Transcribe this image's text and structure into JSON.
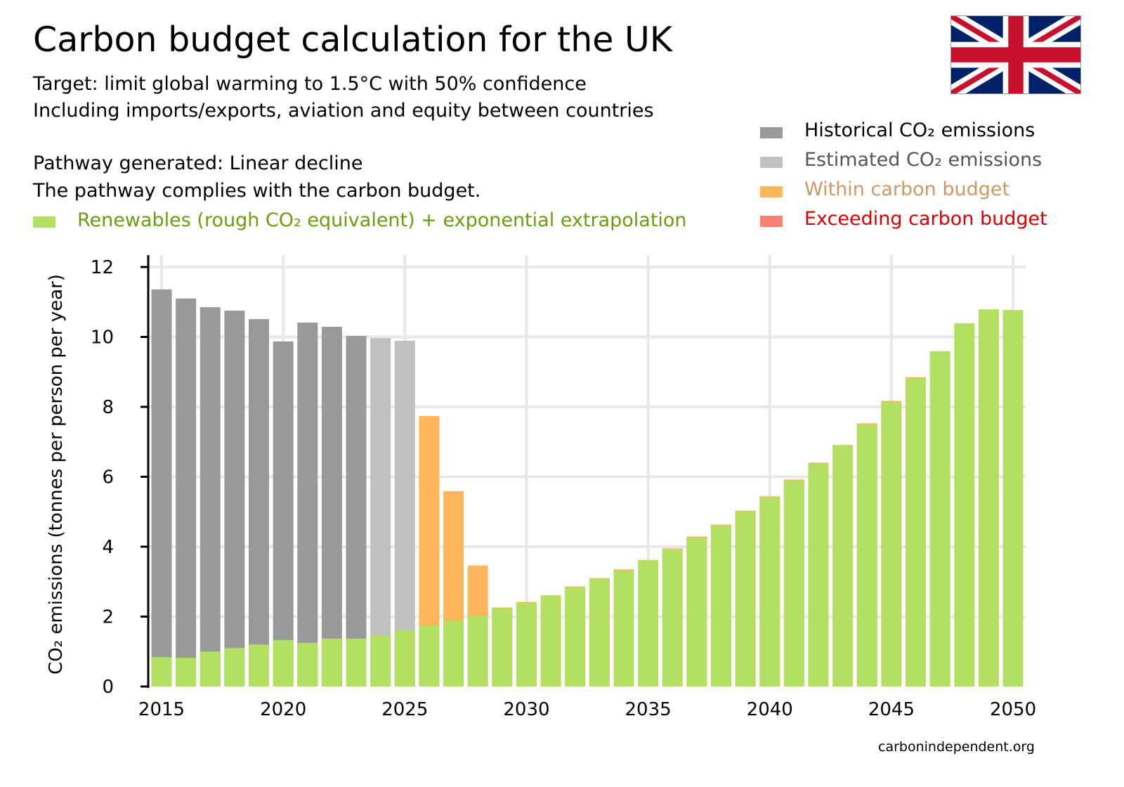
{
  "title": "Carbon budget calculation for the UK",
  "subtitle_lines": [
    "Target: limit global warming to 1.5°C with 50% confidence",
    "Including imports/exports, aviation and equity between countries",
    "Pathway generated: Linear decline",
    "The pathway complies with the carbon budget."
  ],
  "legend": {
    "renewables": "Renewables (rough CO₂ equivalent) + exponential extrapolation",
    "historical": "Historical CO₂ emissions",
    "estimated": "Estimated CO₂ emissions",
    "within": "Within carbon budget",
    "exceeding": "Exceeding carbon budget"
  },
  "colors": {
    "historical": "#999999",
    "estimated": "#c0c0c0",
    "within": "#ffb55a",
    "exceeding": "#fa8072",
    "renewables": "#b3e061",
    "renewables_text": "#6a9e10",
    "within_text": "#cc9966",
    "exceeding_text": "#dd0000",
    "estimated_text": "#555555",
    "grid": "#e8e8e8"
  },
  "credit": "carbonindependent.org",
  "flag_icon": "uk-flag",
  "chart_data": {
    "type": "bar",
    "ylabel": "CO₂ emissions (tonnes per person per year)",
    "ylim": [
      0,
      12
    ],
    "yticks": [
      0,
      2,
      4,
      6,
      8,
      10,
      12
    ],
    "xticks": [
      2015,
      2020,
      2025,
      2030,
      2035,
      2040,
      2045,
      2050
    ],
    "grid": true,
    "legend_position": "top-right",
    "years": [
      2015,
      2016,
      2017,
      2018,
      2019,
      2020,
      2021,
      2022,
      2023,
      2024,
      2025,
      2026,
      2027,
      2028,
      2029,
      2030,
      2031,
      2032,
      2033,
      2034,
      2035,
      2036,
      2037,
      2038,
      2039,
      2040,
      2041,
      2042,
      2043,
      2044,
      2045,
      2046,
      2047,
      2048,
      2049,
      2050
    ],
    "series": [
      {
        "name": "Historical CO₂ emissions",
        "key": "historical",
        "values": [
          11.36,
          11.1,
          10.85,
          10.75,
          10.51,
          9.87,
          10.41,
          10.29,
          10.03,
          null,
          null,
          null,
          null,
          null,
          null,
          null,
          null,
          null,
          null,
          null,
          null,
          null,
          null,
          null,
          null,
          null,
          null,
          null,
          null,
          null,
          null,
          null,
          null,
          null,
          null,
          null
        ]
      },
      {
        "name": "Estimated CO₂ emissions",
        "key": "estimated",
        "values": [
          null,
          null,
          null,
          null,
          null,
          null,
          null,
          null,
          null,
          9.97,
          9.89,
          null,
          null,
          null,
          null,
          null,
          null,
          null,
          null,
          null,
          null,
          null,
          null,
          null,
          null,
          null,
          null,
          null,
          null,
          null,
          null,
          null,
          null,
          null,
          null,
          null
        ]
      },
      {
        "name": "Within carbon budget",
        "key": "within",
        "values": [
          null,
          null,
          null,
          null,
          null,
          null,
          null,
          null,
          null,
          null,
          null,
          7.74,
          5.59,
          3.46,
          2.26,
          2.42,
          null,
          2.86,
          3.1,
          3.35,
          null,
          3.95,
          4.29,
          4.63,
          5.03,
          5.44,
          5.92,
          6.4,
          null,
          7.53,
          8.17,
          8.85,
          null,
          null,
          null,
          null
        ]
      },
      {
        "name": "Renewables (rough CO₂ equivalent) + exponential extrapolation",
        "key": "renewables",
        "values": [
          0.84,
          0.82,
          1.0,
          1.1,
          1.2,
          1.33,
          1.25,
          1.37,
          1.37,
          1.45,
          1.61,
          1.75,
          1.89,
          2.03,
          2.23,
          2.39,
          2.61,
          2.83,
          3.07,
          3.32,
          3.62,
          3.92,
          4.26,
          4.6,
          5.0,
          5.41,
          5.89,
          6.37,
          6.91,
          7.5,
          8.14,
          8.82,
          9.59,
          10.39,
          10.79,
          10.77
        ]
      }
    ]
  }
}
